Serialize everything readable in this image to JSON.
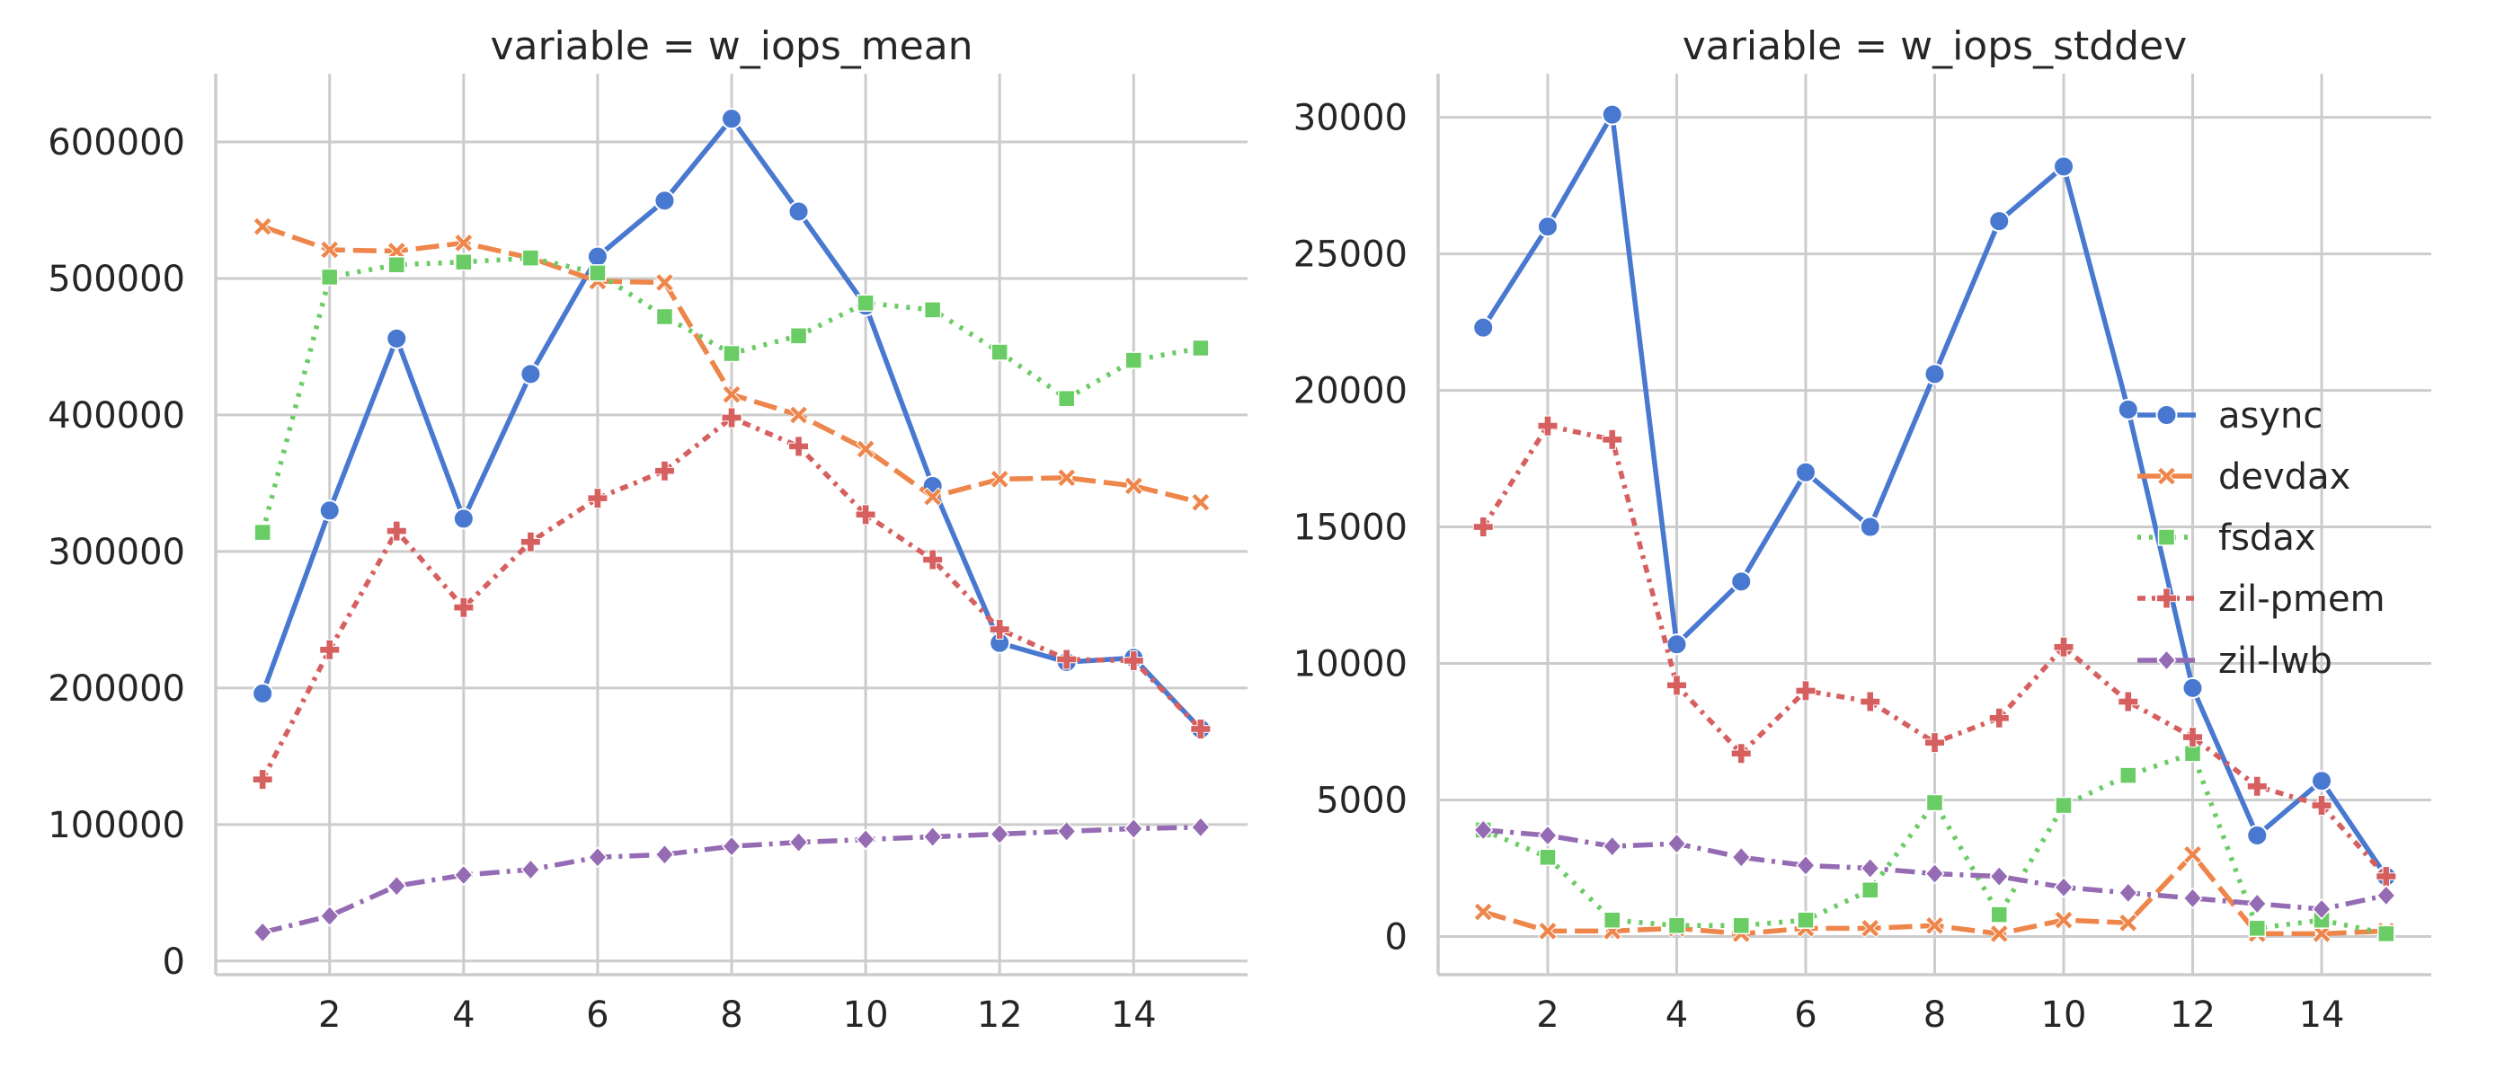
{
  "chart_data": [
    {
      "type": "line",
      "title": "variable = w_iops_mean",
      "xlabel": "",
      "ylabel": "",
      "ylim": [
        -10000,
        650000
      ],
      "xlim": [
        0.3,
        15.7
      ],
      "yticks": [
        0,
        100000,
        200000,
        300000,
        400000,
        500000,
        600000
      ],
      "xticks": [
        2,
        4,
        6,
        8,
        10,
        12,
        14
      ],
      "grid": true,
      "x": [
        1,
        2,
        3,
        4,
        5,
        6,
        7,
        8,
        9,
        10,
        11,
        12,
        13,
        14,
        15
      ],
      "series": [
        {
          "name": "async",
          "color": "#4878d0",
          "dash": "solid",
          "marker": "circle",
          "values": [
            196000,
            330000,
            456000,
            324000,
            430000,
            516000,
            557000,
            617000,
            549000,
            480000,
            348000,
            233000,
            219000,
            222000,
            170000
          ]
        },
        {
          "name": "devdax",
          "color": "#ee854a",
          "dash": "dashed",
          "marker": "x",
          "values": [
            538000,
            521000,
            520000,
            526000,
            515000,
            498000,
            497000,
            415000,
            400000,
            375000,
            340000,
            353000,
            354000,
            348000,
            336000
          ]
        },
        {
          "name": "fsdax",
          "color": "#6acc64",
          "dash": "dotted",
          "marker": "square",
          "values": [
            314000,
            501000,
            510000,
            512000,
            515000,
            504000,
            472000,
            445000,
            458000,
            482000,
            477000,
            446000,
            412000,
            440000,
            449000
          ]
        },
        {
          "name": "zil-pmem",
          "color": "#d65f5f",
          "dash": "dashdot2",
          "marker": "plus",
          "values": [
            133000,
            228000,
            315000,
            259000,
            307000,
            339000,
            359000,
            398000,
            377000,
            327000,
            294000,
            243000,
            221000,
            220000,
            170000
          ]
        },
        {
          "name": "zil-lwb",
          "color": "#956cb4",
          "dash": "dashdot",
          "marker": "diamond",
          "values": [
            21000,
            33000,
            55000,
            63000,
            67000,
            76000,
            78000,
            84000,
            87000,
            89000,
            91000,
            93000,
            95000,
            97000,
            98000
          ]
        }
      ]
    },
    {
      "type": "line",
      "title": "variable = w_iops_stddev",
      "xlabel": "",
      "ylabel": "",
      "ylim": [
        -1400,
        31600
      ],
      "xlim": [
        0.3,
        15.7
      ],
      "yticks": [
        0,
        5000,
        10000,
        15000,
        20000,
        25000,
        30000
      ],
      "xticks": [
        2,
        4,
        6,
        8,
        10,
        12,
        14
      ],
      "grid": true,
      "legend": "center-right",
      "x": [
        1,
        2,
        3,
        4,
        5,
        6,
        7,
        8,
        9,
        10,
        11,
        12,
        13,
        14,
        15
      ],
      "series": [
        {
          "name": "async",
          "color": "#4878d0",
          "dash": "solid",
          "marker": "circle",
          "values": [
            22300,
            26000,
            30100,
            10700,
            13000,
            17000,
            15000,
            20600,
            26200,
            28200,
            19300,
            9100,
            3700,
            5700,
            2200
          ]
        },
        {
          "name": "devdax",
          "color": "#ee854a",
          "dash": "dashed",
          "marker": "x",
          "values": [
            900,
            200,
            200,
            300,
            100,
            300,
            300,
            400,
            100,
            600,
            500,
            3000,
            100,
            100,
            200
          ]
        },
        {
          "name": "fsdax",
          "color": "#6acc64",
          "dash": "dotted",
          "marker": "square",
          "values": [
            3900,
            2900,
            600,
            400,
            400,
            600,
            1700,
            4900,
            800,
            4800,
            5900,
            6700,
            300,
            600,
            100
          ]
        },
        {
          "name": "zil-pmem",
          "color": "#d65f5f",
          "dash": "dashdot2",
          "marker": "plus",
          "values": [
            15000,
            18700,
            18200,
            9200,
            6700,
            9000,
            8600,
            7100,
            8000,
            10600,
            8600,
            7300,
            5500,
            4800,
            2200
          ]
        },
        {
          "name": "zil-lwb",
          "color": "#956cb4",
          "dash": "dashdot",
          "marker": "diamond",
          "values": [
            3900,
            3700,
            3300,
            3400,
            2900,
            2600,
            2500,
            2300,
            2200,
            1800,
            1600,
            1400,
            1200,
            1000,
            1500
          ]
        }
      ]
    }
  ]
}
